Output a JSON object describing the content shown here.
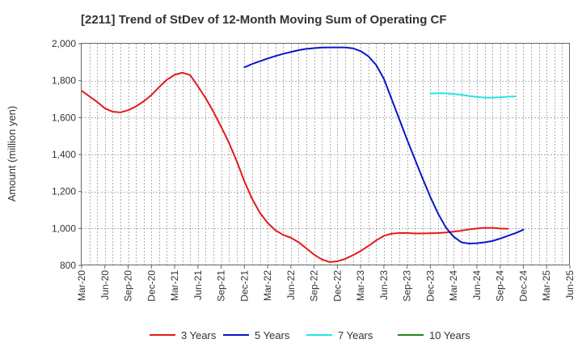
{
  "chart_data": {
    "type": "line",
    "title": "[2211]  Trend of StDev of 12-Month Moving Sum of Operating CF",
    "xlabel": "",
    "ylabel": "Amount (million yen)",
    "ylim": [
      800,
      2000
    ],
    "yticks": [
      800,
      1000,
      1200,
      1400,
      1600,
      1800,
      2000
    ],
    "ytick_labels": [
      "800",
      "1,000",
      "1,200",
      "1,400",
      "1,600",
      "1,800",
      "2,000"
    ],
    "x_labels": [
      "Mar-20",
      "Jun-20",
      "Sep-20",
      "Dec-20",
      "Mar-21",
      "Jun-21",
      "Sep-21",
      "Dec-21",
      "Mar-22",
      "Jun-22",
      "Sep-22",
      "Dec-22",
      "Mar-23",
      "Jun-23",
      "Sep-23",
      "Dec-23",
      "Mar-24",
      "Jun-24",
      "Sep-24",
      "Dec-24",
      "Mar-25",
      "Jun-25"
    ],
    "grid": true,
    "legend_position": "bottom",
    "series": [
      {
        "name": "3 Years",
        "color": "#e31a1c",
        "start_month_index": 0,
        "values": [
          1745,
          1715,
          1685,
          1650,
          1632,
          1628,
          1640,
          1660,
          1688,
          1722,
          1765,
          1805,
          1832,
          1843,
          1830,
          1770,
          1705,
          1632,
          1550,
          1465,
          1365,
          1255,
          1160,
          1085,
          1030,
          990,
          965,
          950,
          925,
          892,
          858,
          832,
          818,
          822,
          835,
          855,
          878,
          905,
          935,
          960,
          972,
          975,
          975,
          973,
          973,
          974,
          975,
          978,
          983,
          988,
          995,
          1000,
          1003,
          1003,
          1000,
          998
        ]
      },
      {
        "name": "5 Years",
        "color": "#0a17c9",
        "start_month_index": 21,
        "values": [
          1872,
          1890,
          1905,
          1920,
          1933,
          1945,
          1955,
          1965,
          1972,
          1976,
          1979,
          1980,
          1980,
          1980,
          1975,
          1960,
          1932,
          1885,
          1810,
          1700,
          1590,
          1480,
          1375,
          1270,
          1170,
          1080,
          1005,
          955,
          925,
          918,
          920,
          925,
          932,
          945,
          960,
          975,
          993
        ]
      },
      {
        "name": "7 Years",
        "color": "#22e5e5",
        "start_month_index": 45,
        "values": [
          1730,
          1732,
          1731,
          1728,
          1723,
          1717,
          1712,
          1708,
          1708,
          1710,
          1713,
          1715
        ]
      },
      {
        "name": "10 Years",
        "color": "#1a8a1a",
        "start_month_index": 0,
        "values": []
      }
    ]
  }
}
